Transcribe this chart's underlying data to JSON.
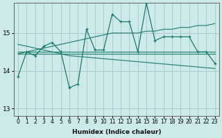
{
  "xlabel": "Humidex (Indice chaleur)",
  "bg_color": "#cceaea",
  "line_color": "#1a7a6a",
  "grid_color": "#aacccc",
  "xlim": [
    -0.5,
    23.5
  ],
  "ylim": [
    12.8,
    15.8
  ],
  "yticks": [
    13,
    14,
    15
  ],
  "xtick_labels": [
    "0",
    "1",
    "2",
    "3",
    "4",
    "5",
    "6",
    "7",
    "8",
    "9",
    "10",
    "11",
    "12",
    "13",
    "14",
    "15",
    "16",
    "17",
    "18",
    "19",
    "20",
    "21",
    "22",
    "23"
  ],
  "series": [
    [
      13.85,
      14.5,
      14.4,
      14.65,
      14.75,
      14.5,
      13.55,
      13.65,
      15.1,
      14.55,
      14.55,
      15.5,
      15.3,
      15.3,
      14.5,
      15.8,
      14.8,
      14.9,
      14.9,
      14.9,
      14.9,
      14.5,
      14.5,
      14.2
    ],
    [
      14.45,
      14.45,
      14.45,
      14.45,
      14.45,
      14.45,
      14.45,
      14.45,
      14.45,
      14.45,
      14.45,
      14.45,
      14.45,
      14.45,
      14.45,
      14.45,
      14.45,
      14.45,
      14.45,
      14.45,
      14.45,
      14.45,
      14.45,
      14.45
    ],
    [
      14.45,
      14.5,
      14.55,
      14.6,
      14.65,
      14.7,
      14.75,
      14.8,
      14.85,
      14.9,
      14.95,
      15.0,
      15.0,
      15.0,
      15.0,
      15.05,
      15.05,
      15.1,
      15.1,
      15.15,
      15.15,
      15.2,
      15.2,
      15.25
    ],
    [
      14.7,
      14.65,
      14.6,
      14.55,
      14.5,
      14.45,
      14.4,
      14.38,
      14.36,
      14.34,
      14.32,
      14.3,
      14.28,
      14.26,
      14.24,
      14.22,
      14.2,
      14.18,
      14.16,
      14.14,
      14.12,
      14.1,
      14.08,
      14.06
    ],
    [
      14.5,
      14.5,
      14.5,
      14.5,
      14.5,
      14.5,
      14.5,
      14.5,
      14.5,
      14.5,
      14.5,
      14.5,
      14.5,
      14.5,
      14.5,
      14.5,
      14.5,
      14.5,
      14.5,
      14.5,
      14.5,
      14.5,
      14.5,
      14.5
    ]
  ],
  "markers": [
    true,
    false,
    false,
    false,
    false
  ]
}
